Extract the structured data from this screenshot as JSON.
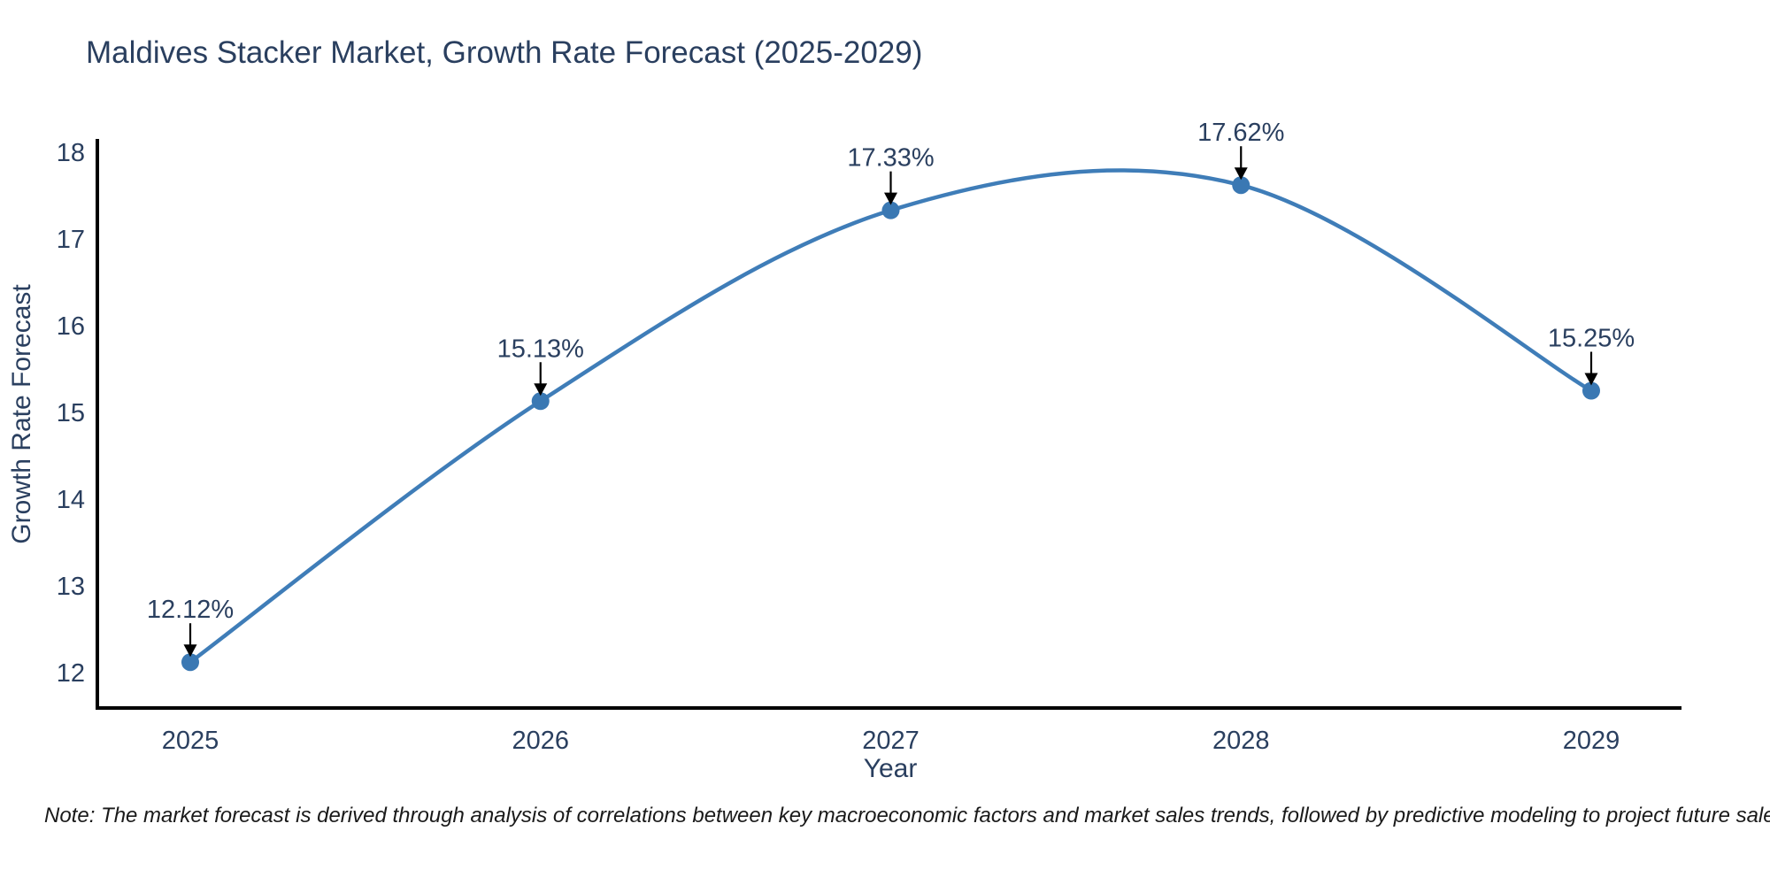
{
  "title": "Maldives Stacker Market, Growth Rate Forecast (2025-2029)",
  "note": "Note: The market forecast is derived through analysis of correlations between key macroeconomic factors and market sales trends, followed by predictive modeling to project future sales",
  "chart_data": {
    "type": "line",
    "line_shape": "spline",
    "title": "Maldives Stacker Market, Growth Rate Forecast (2025-2029)",
    "xlabel": "Year",
    "ylabel": "Growth Rate Forecast",
    "categories": [
      "2025",
      "2026",
      "2027",
      "2028",
      "2029"
    ],
    "values": [
      12.12,
      15.13,
      17.33,
      17.62,
      15.25
    ],
    "point_labels": [
      "12.12%",
      "15.13%",
      "17.33%",
      "17.62%",
      "15.25%"
    ],
    "yticks": [
      12,
      13,
      14,
      15,
      16,
      17,
      18
    ],
    "ylim": [
      11.6,
      18.15
    ],
    "grid": false,
    "legend_position": "none",
    "annotation": "arrow-down-to-point",
    "colors": {
      "line": "#3f7db8",
      "marker": "#3a78b3",
      "axis": "#000000",
      "tick_text": "#2a3f5f",
      "annotation_text": "#2a3f5f",
      "annotation_arrow": "#000000",
      "background": "#ffffff"
    }
  }
}
